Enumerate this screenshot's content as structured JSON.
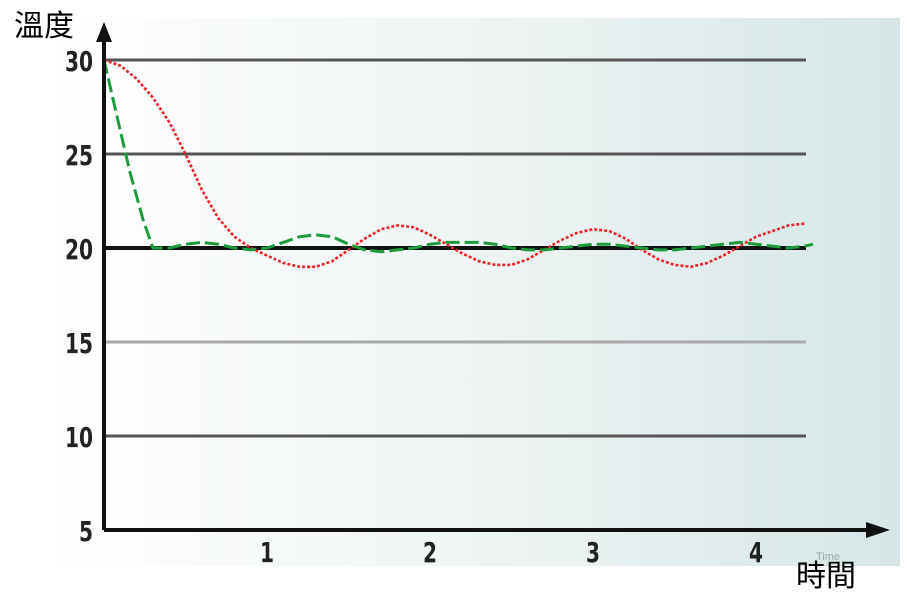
{
  "chart_data": {
    "type": "line",
    "ylabel": "溫度",
    "xlabel": "時間",
    "xlabel_secondary": "Time",
    "ylim": [
      5,
      30
    ],
    "xlim": [
      0,
      4.35
    ],
    "y_ticks": [
      30,
      25,
      20,
      15,
      10,
      5
    ],
    "x_ticks": [
      1,
      2,
      3,
      4
    ],
    "grid": true,
    "setpoint": 20,
    "series": [
      {
        "color": "#e8262c",
        "style": "dotted",
        "x": [
          0,
          0.1,
          0.2,
          0.3,
          0.4,
          0.5,
          0.6,
          0.7,
          0.8,
          0.9,
          1.0,
          1.1,
          1.2,
          1.3,
          1.4,
          1.5,
          1.6,
          1.7,
          1.8,
          1.9,
          2.0,
          2.1,
          2.2,
          2.3,
          2.4,
          2.5,
          2.6,
          2.7,
          2.8,
          2.9,
          3.0,
          3.1,
          3.2,
          3.3,
          3.4,
          3.5,
          3.6,
          3.7,
          3.8,
          3.9,
          4.0,
          4.1,
          4.2,
          4.3
        ],
        "y": [
          30,
          29.7,
          29.0,
          28.0,
          26.7,
          25.0,
          23.1,
          21.6,
          20.6,
          20.0,
          19.6,
          19.2,
          19.0,
          19.0,
          19.3,
          19.9,
          20.5,
          21.0,
          21.2,
          21.1,
          20.7,
          20.2,
          19.7,
          19.3,
          19.1,
          19.1,
          19.4,
          19.9,
          20.4,
          20.8,
          21.0,
          20.9,
          20.5,
          19.9,
          19.4,
          19.1,
          19.0,
          19.2,
          19.6,
          20.1,
          20.6,
          20.9,
          21.2,
          21.3
        ]
      },
      {
        "color": "#1f9a3c",
        "style": "dashed",
        "x": [
          0,
          0.08,
          0.16,
          0.24,
          0.3,
          0.4,
          0.5,
          0.6,
          0.7,
          0.8,
          0.9,
          1.0,
          1.1,
          1.2,
          1.3,
          1.4,
          1.5,
          1.6,
          1.7,
          1.8,
          1.9,
          2.0,
          2.1,
          2.2,
          2.3,
          2.4,
          2.5,
          2.6,
          2.7,
          2.8,
          2.9,
          3.0,
          3.1,
          3.2,
          3.3,
          3.4,
          3.5,
          3.6,
          3.7,
          3.8,
          3.9,
          4.0,
          4.1,
          4.2,
          4.3,
          4.35
        ],
        "y": [
          30,
          27.0,
          24.0,
          21.5,
          20.0,
          20.0,
          20.2,
          20.3,
          20.2,
          20.0,
          19.9,
          20.0,
          20.3,
          20.6,
          20.7,
          20.6,
          20.2,
          19.9,
          19.8,
          19.9,
          20.0,
          20.2,
          20.3,
          20.3,
          20.3,
          20.2,
          20.0,
          19.9,
          19.9,
          20.0,
          20.1,
          20.2,
          20.2,
          20.1,
          20.0,
          19.9,
          19.9,
          20.0,
          20.1,
          20.2,
          20.3,
          20.2,
          20.1,
          20.0,
          20.1,
          20.2
        ]
      }
    ]
  }
}
